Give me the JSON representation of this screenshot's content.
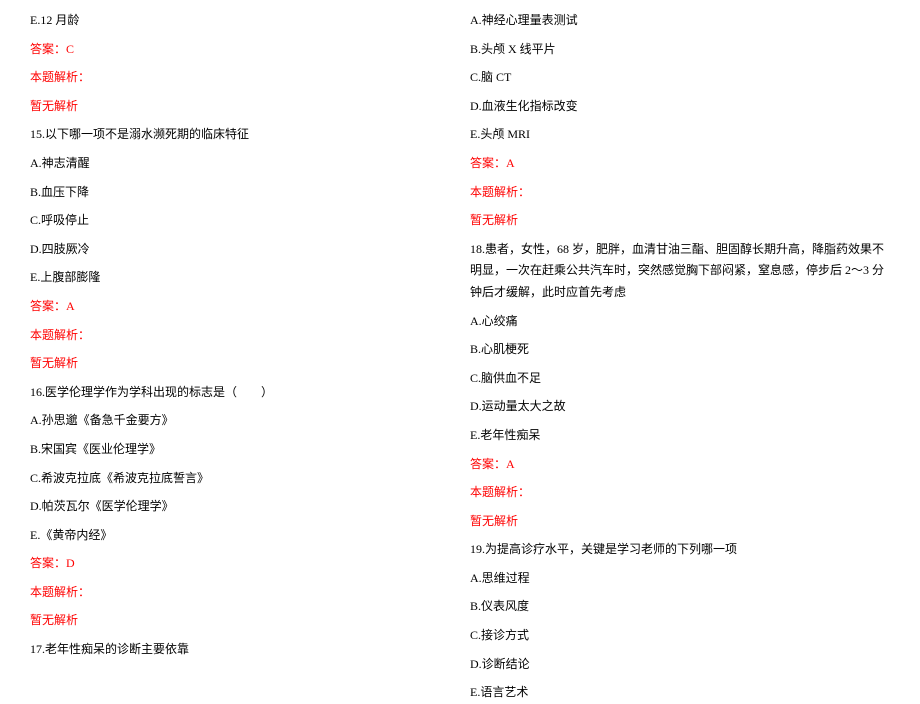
{
  "col_left": {
    "q14_e": "E.12 月龄",
    "q14_answer": "答案：C",
    "q14_analysis_label": "本题解析：",
    "q14_analysis_text": "暂无解析",
    "q15_stem": "15.以下哪一项不是溺水濒死期的临床特征",
    "q15_a": "A.神志清醒",
    "q15_b": "B.血压下降",
    "q15_c": "C.呼吸停止",
    "q15_d": "D.四肢厥冷",
    "q15_e": "E.上腹部膨隆",
    "q15_answer": "答案：A",
    "q15_analysis_label": "本题解析：",
    "q15_analysis_text": "暂无解析",
    "q16_stem": "16.医学伦理学作为学科出现的标志是（　　）",
    "q16_a": "A.孙思邈《备急千金要方》",
    "q16_b": "B.宋国宾《医业伦理学》",
    "q16_c": "C.希波克拉底《希波克拉底誓言》",
    "q16_d": "D.帕茨瓦尔《医学伦理学》",
    "q16_e": "E.《黄帝内经》",
    "q16_answer": "答案：D",
    "q16_analysis_label": "本题解析：",
    "q16_analysis_text": "暂无解析",
    "q17_stem": "17.老年性痴呆的诊断主要依靠"
  },
  "col_right": {
    "q17_a": "A.神经心理量表测试",
    "q17_b": "B.头颅 X 线平片",
    "q17_c": "C.脑 CT",
    "q17_d": "D.血液生化指标改变",
    "q17_e": "E.头颅 MRI",
    "q17_answer": "答案：A",
    "q17_analysis_label": "本题解析：",
    "q17_analysis_text": "暂无解析",
    "q18_stem": "18.患者，女性，68 岁，肥胖，血清甘油三酯、胆固醇长期升高，降脂药效果不明显，一次在赶乘公共汽车时，突然感觉胸下部闷紧，窒息感，停步后 2～3 分钟后才缓解，此时应首先考虑",
    "q18_a": "A.心绞痛",
    "q18_b": "B.心肌梗死",
    "q18_c": "C.脑供血不足",
    "q18_d": "D.运动量太大之故",
    "q18_e": "E.老年性痴呆",
    "q18_answer": "答案：A",
    "q18_analysis_label": "本题解析：",
    "q18_analysis_text": "暂无解析",
    "q19_stem": "19.为提高诊疗水平，关键是学习老师的下列哪一项",
    "q19_a": "A.思维过程",
    "q19_b": "B.仪表风度",
    "q19_c": "C.接诊方式",
    "q19_d": "D.诊断结论",
    "q19_e": "E.语言艺术"
  }
}
